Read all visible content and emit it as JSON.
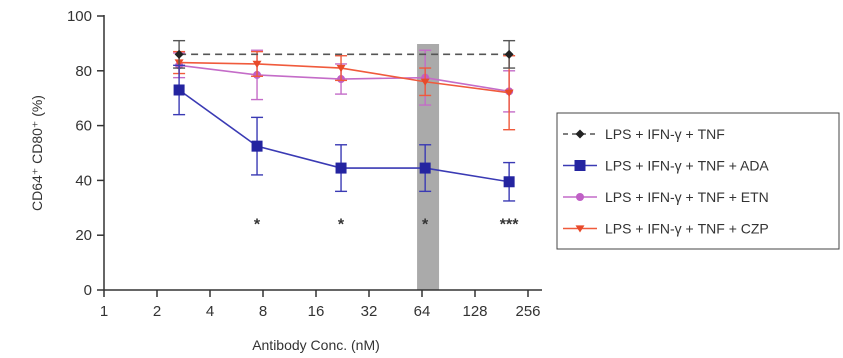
{
  "chart_data": {
    "type": "line",
    "title": "",
    "xlabel": "Antibody Conc. (nM)",
    "ylabel": "CD64⁺ CD80⁺ (%)",
    "x_scale": "log2",
    "xlim": [
      1,
      256
    ],
    "ylim": [
      0,
      100
    ],
    "x_ticks": [
      "1",
      "2",
      "4",
      "8",
      "16",
      "32",
      "64",
      "128",
      "256"
    ],
    "y_ticks": [
      "0",
      "20",
      "40",
      "60",
      "80",
      "100"
    ],
    "shaded_band": {
      "x_range": [
        60,
        80
      ],
      "color": "#aaaaaa"
    },
    "legend_position": "right",
    "series": [
      {
        "name": "LPS + IFN-γ + TNF",
        "style": "dashed",
        "marker": "diamond",
        "color": "#555555",
        "marker_color": "#222222",
        "x": [
          2.67,
          200
        ],
        "y": [
          86,
          86
        ],
        "err": [
          5,
          5
        ]
      },
      {
        "name": "LPS + IFN-γ + TNF + ADA",
        "style": "solid",
        "marker": "square",
        "color": "#3a3ab4",
        "marker_color": "#2424a0",
        "x": [
          2.67,
          7.4,
          22.2,
          66.7,
          200
        ],
        "y": [
          73,
          52.5,
          44.5,
          44.5,
          39.5
        ],
        "err": [
          9,
          10.5,
          8.5,
          8.5,
          7
        ]
      },
      {
        "name": "LPS + IFN-γ + TNF + ETN",
        "style": "solid",
        "marker": "circle",
        "color": "#c46cc8",
        "marker_color": "#c060c6",
        "x": [
          2.67,
          7.4,
          22.2,
          66.7,
          200
        ],
        "y": [
          82,
          78.5,
          77,
          77.5,
          72.5
        ],
        "err": [
          4.5,
          9,
          5.5,
          10,
          7.5
        ]
      },
      {
        "name": "LPS + IFN-γ + TNF + CZP",
        "style": "solid",
        "marker": "triangle-down",
        "color": "#f05a3c",
        "marker_color": "#e84a2a",
        "x": [
          2.67,
          7.4,
          22.2,
          66.7,
          200
        ],
        "y": [
          83,
          82.5,
          81,
          76,
          72
        ],
        "err": [
          4,
          4.5,
          4.5,
          5,
          13.5
        ]
      }
    ],
    "annotations": [
      {
        "x": 7.4,
        "y": 26.5,
        "text": "*"
      },
      {
        "x": 22.2,
        "y": 26.5,
        "text": "*"
      },
      {
        "x": 66.7,
        "y": 26.5,
        "text": "*"
      },
      {
        "x": 200,
        "y": 26.5,
        "text": "***"
      }
    ]
  }
}
